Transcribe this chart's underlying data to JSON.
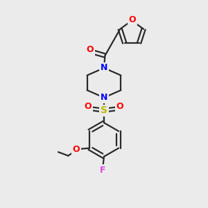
{
  "bg_color": "#ebebeb",
  "bond_color": "#2a2a2a",
  "bond_width": 1.6,
  "atom_colors": {
    "O": "#ff0000",
    "N": "#0000ff",
    "S": "#bbbb00",
    "F": "#dd44dd",
    "C": "#2a2a2a"
  },
  "figsize": [
    3.0,
    3.0
  ],
  "dpi": 100
}
